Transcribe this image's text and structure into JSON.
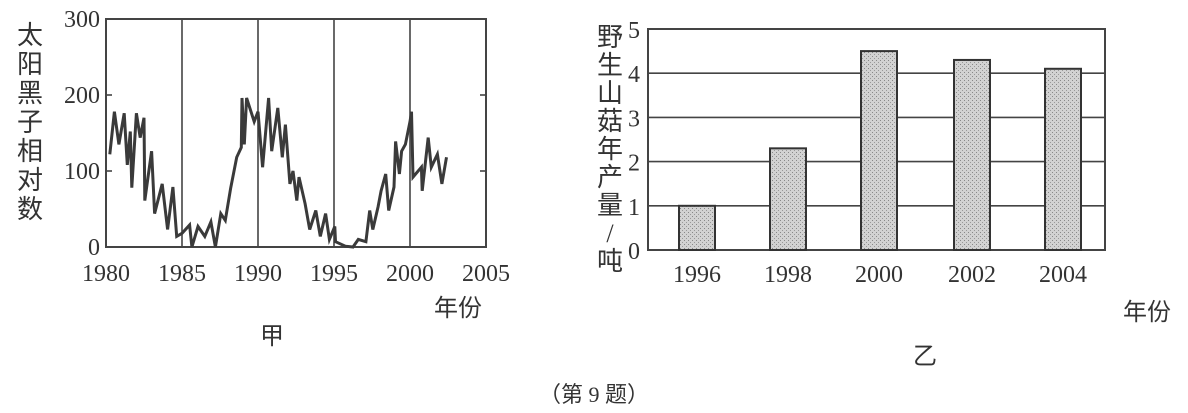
{
  "caption": "（第 9 题）",
  "chart_data": [
    {
      "type": "line",
      "panel_label": "甲",
      "ylabel": "太阳黑子相对数",
      "xlabel": "年份",
      "xlim": [
        1980,
        2005
      ],
      "ylim": [
        0,
        300
      ],
      "xticks": [
        "1980",
        "1985",
        "1990",
        "1995",
        "2000",
        "2005"
      ],
      "yticks": [
        "0",
        "100",
        "200",
        "300"
      ],
      "grid": "vertical lines at 1985, 1990, 1995, 2000",
      "x": [
        1980.25,
        1980.55,
        1980.85,
        1981.2,
        1981.4,
        1981.6,
        1981.7,
        1982.0,
        1982.25,
        1982.5,
        1982.55,
        1983.0,
        1983.2,
        1983.7,
        1984.05,
        1984.4,
        1984.65,
        1985.0,
        1985.5,
        1985.65,
        1986.05,
        1986.5,
        1986.9,
        1987.2,
        1987.55,
        1987.85,
        1988.2,
        1988.6,
        1988.9,
        1988.95,
        1989.1,
        1989.25,
        1989.75,
        1990.0,
        1990.3,
        1990.7,
        1990.9,
        1991.3,
        1991.6,
        1991.8,
        1992.1,
        1992.3,
        1992.55,
        1992.7,
        1993.1,
        1993.4,
        1993.8,
        1994.1,
        1994.45,
        1994.7,
        1995.05,
        1995.1,
        1995.75,
        1996.25,
        1996.6,
        1997.1,
        1997.35,
        1997.55,
        1997.9,
        1998.1,
        1998.4,
        1998.6,
        1998.95,
        1999.05,
        1999.3,
        1999.45,
        1999.7,
        2000.0,
        2000.1,
        2000.2,
        2000.75,
        2000.8,
        2001.2,
        2001.4,
        2001.8,
        2002.1,
        2002.4
      ],
      "y": [
        122,
        178,
        135,
        176,
        108,
        152,
        78,
        176,
        144,
        170,
        61,
        126,
        44,
        83,
        23,
        79,
        14,
        18,
        29,
        0,
        27,
        14,
        33,
        0,
        44,
        35,
        77,
        118,
        131,
        196,
        135,
        196,
        165,
        178,
        105,
        196,
        126,
        183,
        118,
        161,
        83,
        100,
        61,
        92,
        57,
        23,
        48,
        14,
        44,
        10,
        27,
        7,
        1,
        0,
        10,
        7,
        48,
        23,
        53,
        74,
        96,
        48,
        79,
        139,
        96,
        126,
        135,
        165,
        178,
        92,
        105,
        74,
        144,
        105,
        122,
        83,
        118
      ]
    },
    {
      "type": "bar",
      "panel_label": "乙",
      "ylabel": "野生山菇年产量/吨",
      "xlabel": "年份",
      "categories": [
        "1996",
        "1998",
        "2000",
        "2002",
        "2004"
      ],
      "values": [
        1.0,
        2.3,
        4.5,
        4.3,
        4.1
      ],
      "ylim": [
        0,
        5
      ],
      "yticks": [
        "0",
        "1",
        "2",
        "3",
        "4",
        "5"
      ],
      "grid": "horizontal lines",
      "bar_color": "#c4c4c4"
    }
  ]
}
